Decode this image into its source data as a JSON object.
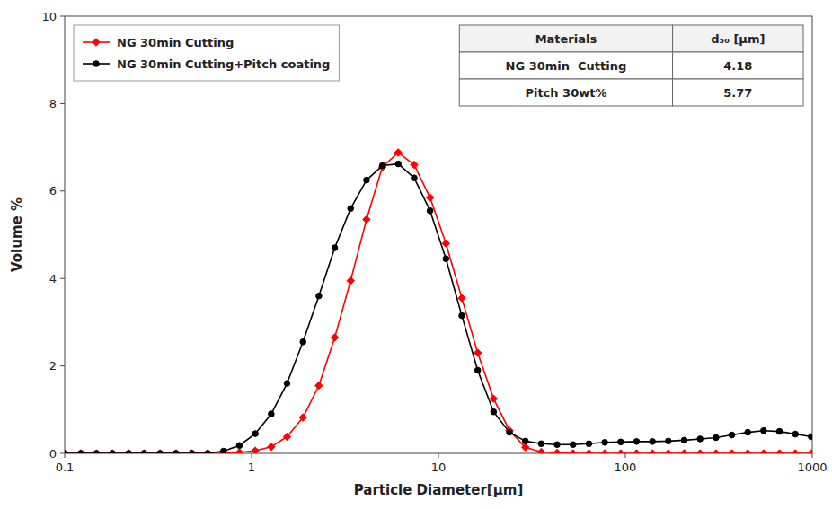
{
  "chart_data": {
    "type": "line",
    "xlabel": "Particle Diameter[μm]",
    "ylabel": "Volume %",
    "log": "x",
    "grid": false,
    "legend": "upper left",
    "xlim": [
      0.1,
      1000
    ],
    "ylim": [
      0,
      10
    ],
    "xticks": [
      0.1,
      1,
      10,
      100,
      1000
    ],
    "yticks": [
      0,
      2,
      4,
      6,
      8,
      10
    ],
    "x": [
      0.1,
      0.122,
      0.148,
      0.18,
      0.22,
      0.266,
      0.324,
      0.394,
      0.479,
      0.583,
      0.708,
      0.861,
      1.047,
      1.274,
      1.548,
      1.884,
      2.291,
      2.786,
      3.388,
      4.121,
      5.012,
      6.095,
      7.413,
      9.016,
      10.965,
      13.335,
      16.218,
      19.724,
      23.988,
      29.174,
      35.481,
      43.152,
      52.481,
      63.826,
      77.625,
      94.406,
      114.815,
      139.624,
      169.824,
      206.551,
      251.189,
      305.386,
      371.374,
      451.586,
      549.041,
      667.868,
      812.381,
      987.92
    ],
    "series": [
      {
        "name": "NG 30min Cutting",
        "color": "#FF0000",
        "marker": "diamond",
        "values": [
          0.0,
          0.0,
          0.0,
          0.0,
          0.0,
          0.0,
          0.0,
          0.0,
          0.0,
          0.0,
          0.0,
          0.02,
          0.06,
          0.15,
          0.38,
          0.82,
          1.55,
          2.65,
          3.95,
          5.35,
          6.55,
          6.88,
          6.6,
          5.85,
          4.8,
          3.55,
          2.3,
          1.25,
          0.52,
          0.14,
          0.03,
          0.01,
          0.0,
          0.0,
          0.0,
          0.0,
          0.0,
          0.0,
          0.0,
          0.0,
          0.0,
          0.0,
          0.0,
          0.0,
          0.0,
          0.0,
          0.0,
          0.0
        ]
      },
      {
        "name": "NG 30min Cutting+Pitch coating",
        "color": "#000000",
        "marker": "circle",
        "values": [
          0.0,
          0.0,
          0.0,
          0.0,
          0.0,
          0.0,
          0.0,
          0.0,
          0.0,
          0.0,
          0.05,
          0.18,
          0.45,
          0.9,
          1.6,
          2.55,
          3.6,
          4.7,
          5.6,
          6.25,
          6.58,
          6.62,
          6.3,
          5.55,
          4.45,
          3.15,
          1.9,
          0.95,
          0.48,
          0.28,
          0.22,
          0.2,
          0.2,
          0.22,
          0.25,
          0.26,
          0.27,
          0.27,
          0.28,
          0.3,
          0.33,
          0.36,
          0.42,
          0.48,
          0.52,
          0.5,
          0.44,
          0.38
        ]
      }
    ],
    "table": {
      "columns": [
        "Materials",
        "d₅₀ [μm]"
      ],
      "rows": [
        [
          "NG 30min  Cutting",
          "4.18"
        ],
        [
          "Pitch 30wt%",
          "5.77"
        ]
      ]
    }
  }
}
